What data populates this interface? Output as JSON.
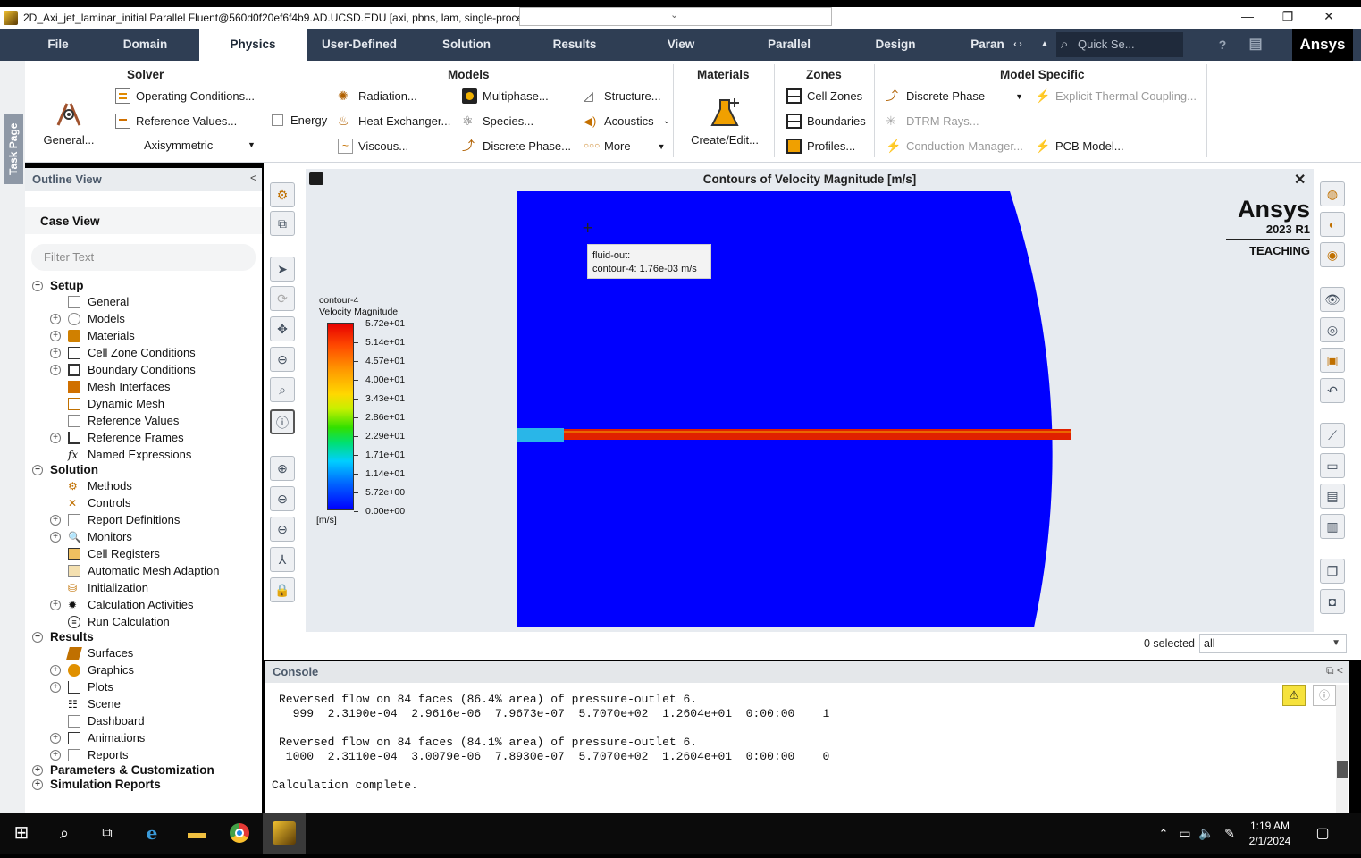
{
  "window": {
    "title": "2D_Axi_jet_laminar_initial Parallel Fluent@560d0f20ef6f4b9.AD.UCSD.EDU  [axi, pbns, lam, single-process]",
    "minimize": "—",
    "maximize": "❐",
    "close": "✕"
  },
  "tabs": [
    "File",
    "Domain",
    "Physics",
    "User-Defined",
    "Solution",
    "Results",
    "View",
    "Parallel",
    "Design",
    "Paran"
  ],
  "active_tab": "Physics",
  "quick_search": {
    "placeholder": "Quick Se..."
  },
  "brand_logo": "Ansys",
  "task_page": "Task Page",
  "ribbon": {
    "solver": {
      "title": "Solver",
      "general": "General...",
      "operating_conditions": "Operating Conditions...",
      "reference_values": "Reference Values...",
      "space": "Axisymmetric"
    },
    "models": {
      "title": "Models",
      "energy": "Energy",
      "radiation": "Radiation...",
      "heat_exchanger": "Heat Exchanger...",
      "viscous": "Viscous...",
      "multiphase": "Multiphase...",
      "species": "Species...",
      "discrete_phase": "Discrete Phase...",
      "structure": "Structure...",
      "acoustics": "Acoustics",
      "more": "More"
    },
    "materials": {
      "title": "Materials",
      "create_edit": "Create/Edit..."
    },
    "zones": {
      "title": "Zones",
      "cell_zones": "Cell Zones",
      "boundaries": "Boundaries",
      "profiles": "Profiles..."
    },
    "model_specific": {
      "title": "Model Specific",
      "discrete_phase": "Discrete Phase",
      "dtrm_rays": "DTRM Rays...",
      "conduction_manager": "Conduction Manager...",
      "explicit_thermal": "Explicit Thermal Coupling...",
      "pcb_model": "PCB Model..."
    }
  },
  "outline": {
    "title": "Outline View",
    "case_view": "Case View",
    "filter_placeholder": "Filter Text",
    "setup": "Setup",
    "setup_items": [
      "General",
      "Models",
      "Materials",
      "Cell Zone Conditions",
      "Boundary Conditions",
      "Mesh Interfaces",
      "Dynamic Mesh",
      "Reference Values",
      "Reference Frames",
      "Named Expressions"
    ],
    "solution": "Solution",
    "solution_items": [
      "Methods",
      "Controls",
      "Report Definitions",
      "Monitors",
      "Cell Registers",
      "Automatic Mesh Adaption",
      "Initialization",
      "Calculation Activities",
      "Run Calculation"
    ],
    "results": "Results",
    "results_items": [
      "Surfaces",
      "Graphics",
      "Plots",
      "Scene",
      "Dashboard",
      "Animations",
      "Reports"
    ],
    "params": "Parameters & Customization",
    "sim_reports": "Simulation Reports"
  },
  "viewport": {
    "title": "Contours of Velocity Magnitude [m/s]",
    "close": "✕",
    "legend_name": "contour-4",
    "legend_var": "Velocity Magnitude",
    "legend_ticks": [
      "5.72e+01",
      "5.14e+01",
      "4.57e+01",
      "4.00e+01",
      "3.43e+01",
      "2.86e+01",
      "2.29e+01",
      "1.71e+01",
      "1.14e+01",
      "5.72e+00",
      "0.00e+00"
    ],
    "legend_units": "[m/s]",
    "tooltip_line1": "fluid-out:",
    "tooltip_line2": "contour-4: 1.76e-03 m/s",
    "brand_name": "Ansys",
    "brand_version": "2023 R1",
    "brand_edition": "TEACHING",
    "colors": {
      "max": "#e60000",
      "min": "#0000ff",
      "inlet": "#29b6e8"
    }
  },
  "selection": {
    "count": "0 selected",
    "filter": "all"
  },
  "console": {
    "title": "Console",
    "lines": [
      "Reversed flow on 84 faces (86.4% area) of pressure-outlet 6.",
      "  999  2.3190e-04  2.9616e-06  7.9673e-07  5.7070e+02  1.2604e+01  0:00:00    1",
      "",
      "Reversed flow on 84 faces (84.1% area) of pressure-outlet 6.",
      " 1000  2.3110e-04  3.0079e-06  7.8930e-07  5.7070e+02  1.2604e+01  0:00:00    0",
      "",
      "Calculation complete."
    ]
  },
  "taskbar": {
    "time": "1:19 AM",
    "date": "2/1/2024"
  }
}
